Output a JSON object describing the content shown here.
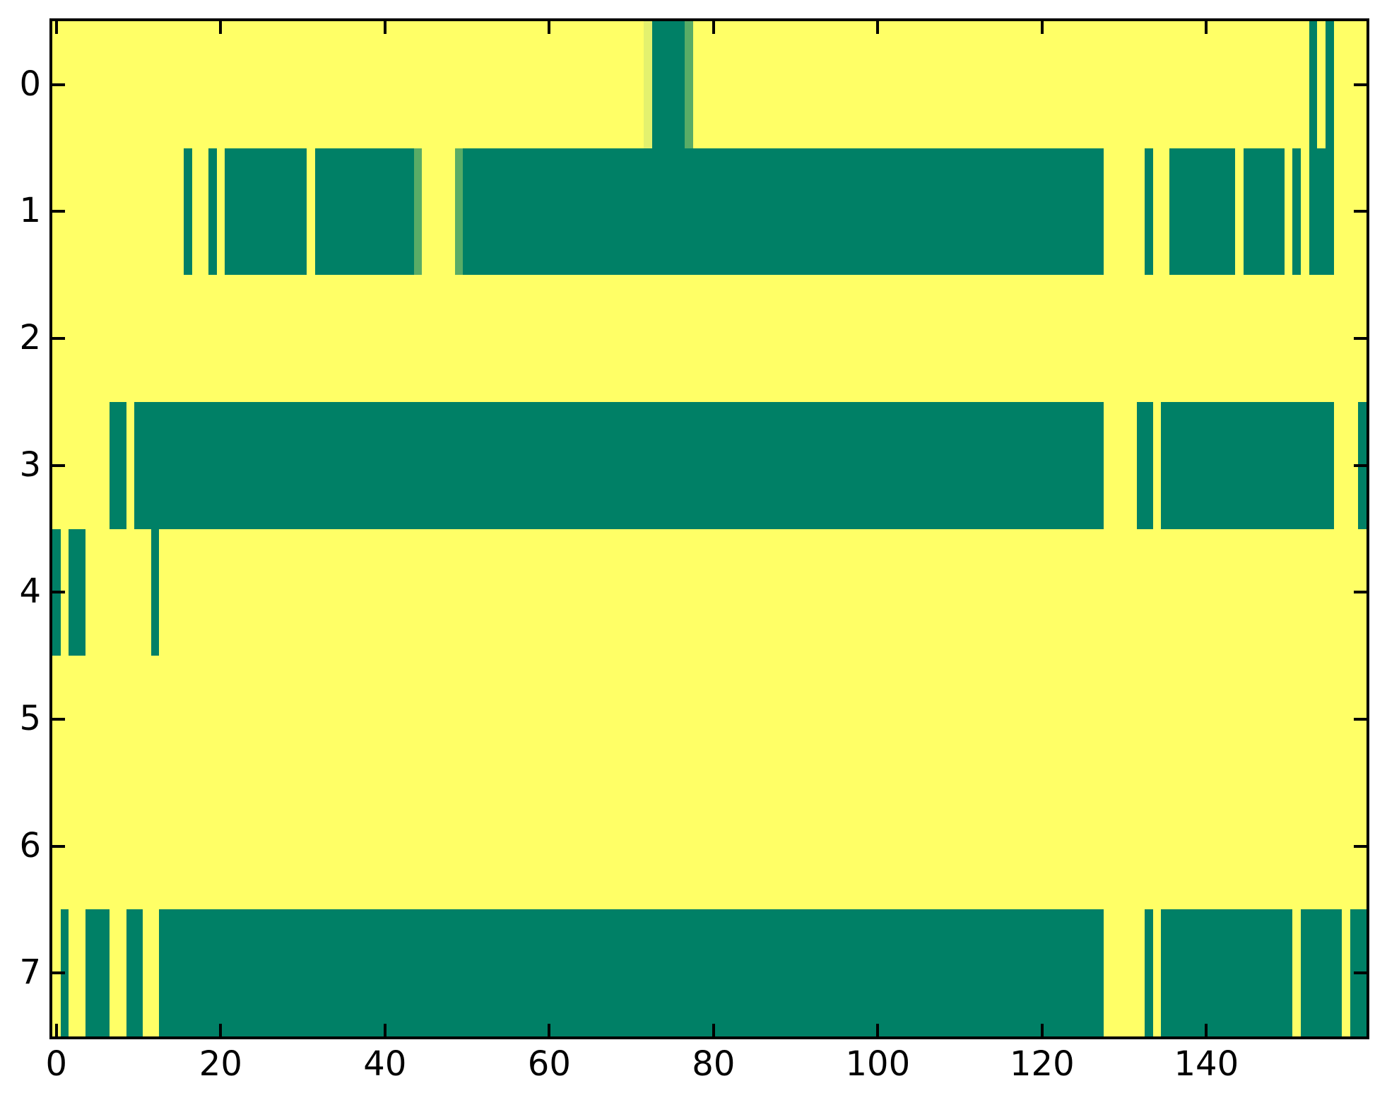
{
  "figure": {
    "background": "#ffffff",
    "title": ""
  },
  "chart_data": {
    "type": "heatmap",
    "title": "",
    "xlabel": "",
    "ylabel": "",
    "n_cols": 160,
    "n_rows": 8,
    "x_axis_range": [
      -0.5,
      159.5
    ],
    "grid": false,
    "legend": "none",
    "colors": {
      "bg": "#FFFF66",
      "f": "#008066",
      "m": "#59AC66",
      "l": "#E3F16E"
    },
    "x_ticks": [
      {
        "col": 0,
        "label": "0"
      },
      {
        "col": 20,
        "label": "20"
      },
      {
        "col": 40,
        "label": "40"
      },
      {
        "col": 60,
        "label": "60"
      },
      {
        "col": 80,
        "label": "80"
      },
      {
        "col": 100,
        "label": "100"
      },
      {
        "col": 120,
        "label": "120"
      },
      {
        "col": 140,
        "label": "140"
      }
    ],
    "y_ticks": [
      {
        "row": 0,
        "label": "0"
      },
      {
        "row": 1,
        "label": "1"
      },
      {
        "row": 2,
        "label": "2"
      },
      {
        "row": 3,
        "label": "3"
      },
      {
        "row": 4,
        "label": "4"
      },
      {
        "row": 5,
        "label": "5"
      },
      {
        "row": 6,
        "label": "6"
      },
      {
        "row": 7,
        "label": "7"
      }
    ],
    "rows": [
      {
        "label": "0",
        "segments": [
          [
            72,
            73,
            "l"
          ],
          [
            73,
            77,
            "f"
          ],
          [
            77,
            78,
            "m"
          ],
          [
            153,
            154,
            "f"
          ],
          [
            155,
            156,
            "f"
          ]
        ]
      },
      {
        "label": "1",
        "segments": [
          [
            16,
            17,
            "f"
          ],
          [
            19,
            20,
            "f"
          ],
          [
            21,
            31,
            "f"
          ],
          [
            32,
            44,
            "f"
          ],
          [
            44,
            45,
            "m"
          ],
          [
            49,
            50,
            "m"
          ],
          [
            50,
            128,
            "f"
          ],
          [
            133,
            134,
            "f"
          ],
          [
            136,
            144,
            "f"
          ],
          [
            145,
            150,
            "f"
          ],
          [
            151,
            152,
            "f"
          ],
          [
            153,
            156,
            "f"
          ]
        ]
      },
      {
        "label": "2",
        "segments": []
      },
      {
        "label": "3",
        "segments": [
          [
            7,
            9,
            "f"
          ],
          [
            10,
            128,
            "f"
          ],
          [
            132,
            134,
            "f"
          ],
          [
            135,
            156,
            "f"
          ],
          [
            159,
            160,
            "f"
          ]
        ]
      },
      {
        "label": "4",
        "segments": [
          [
            0,
            1,
            "f"
          ],
          [
            2,
            4,
            "f"
          ],
          [
            12,
            13,
            "f"
          ]
        ]
      },
      {
        "label": "5",
        "segments": []
      },
      {
        "label": "6",
        "segments": []
      },
      {
        "label": "7",
        "segments": [
          [
            1,
            2,
            "f"
          ],
          [
            4,
            7,
            "f"
          ],
          [
            9,
            11,
            "f"
          ],
          [
            13,
            128,
            "f"
          ],
          [
            133,
            134,
            "f"
          ],
          [
            135,
            151,
            "f"
          ],
          [
            152,
            157,
            "f"
          ],
          [
            158,
            160,
            "f"
          ]
        ]
      }
    ]
  }
}
